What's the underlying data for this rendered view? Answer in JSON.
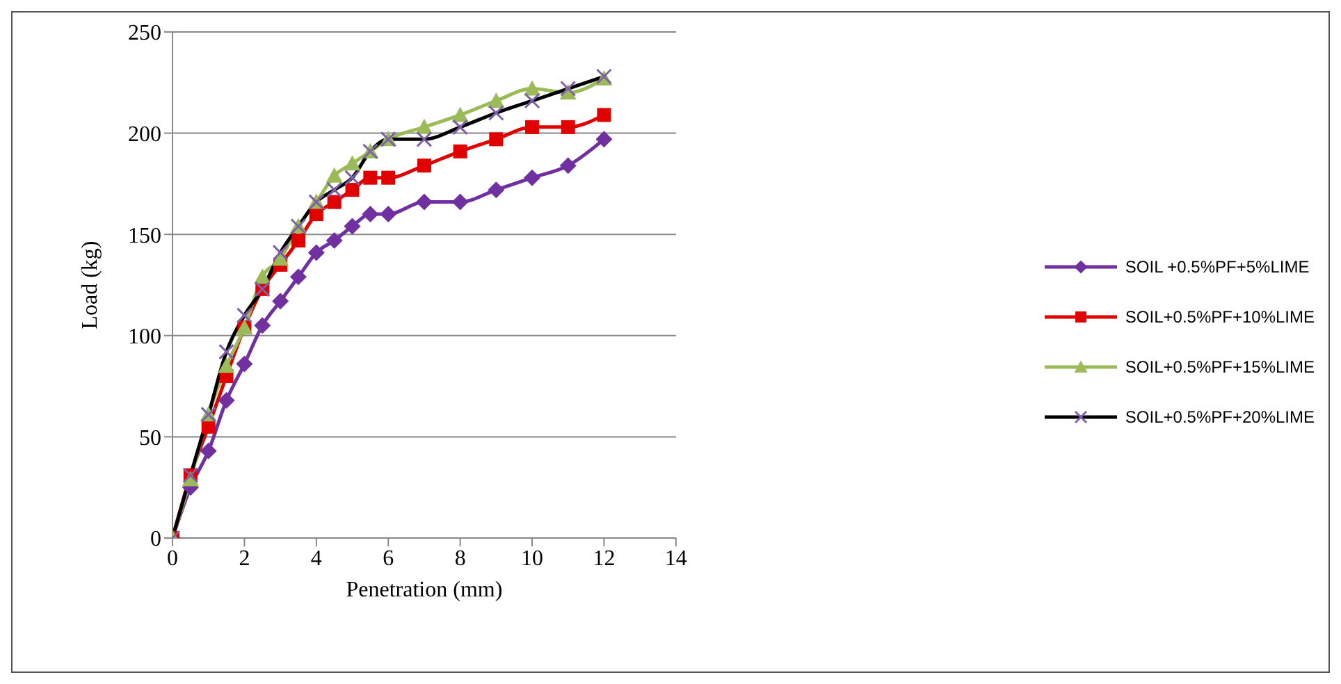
{
  "chart_data": {
    "type": "line",
    "xlabel": "Penetration (mm)",
    "ylabel": "Load (kg)",
    "x": [
      0,
      0.5,
      1,
      1.5,
      2,
      2.5,
      3,
      3.5,
      4,
      4.5,
      5,
      5.5,
      6,
      7,
      8,
      9,
      10,
      11,
      12
    ],
    "xlim": [
      0,
      14
    ],
    "xticks": [
      0,
      2,
      4,
      6,
      8,
      10,
      12,
      14
    ],
    "ylim": [
      0,
      250
    ],
    "yticks": [
      0,
      50,
      100,
      150,
      200,
      250
    ],
    "grid": "y",
    "legend": "right",
    "series": [
      {
        "name": "SOIL +0.5%PF+5%LIME",
        "color": "#7030a0",
        "marker": "diamond",
        "values": [
          0,
          25,
          43,
          68,
          86,
          105,
          117,
          129,
          141,
          147,
          154,
          160,
          160,
          166,
          166,
          172,
          178,
          184,
          197
        ]
      },
      {
        "name": "SOIL+0.5%PF+10%LIME",
        "color": "#e00000",
        "marker": "square",
        "values": [
          0,
          31,
          55,
          80,
          104,
          123,
          135,
          147,
          160,
          166,
          172,
          178,
          178,
          184,
          191,
          197,
          203,
          203,
          209
        ]
      },
      {
        "name": "SOIL+0.5%PF+15%LIME",
        "color": "#9bbb59",
        "marker": "triangle",
        "values": [
          0,
          29,
          61,
          85,
          104,
          129,
          138,
          154,
          166,
          179,
          185,
          191,
          197,
          203,
          209,
          216,
          222,
          220,
          227
        ]
      },
      {
        "name": "SOIL+0.5%PF+20%LIME",
        "color": "#000000",
        "marker": "cross",
        "values": [
          0,
          31,
          61,
          92,
          110,
          123,
          141,
          154,
          166,
          172,
          178,
          191,
          197,
          197,
          203,
          210,
          216,
          222,
          228
        ]
      }
    ]
  }
}
